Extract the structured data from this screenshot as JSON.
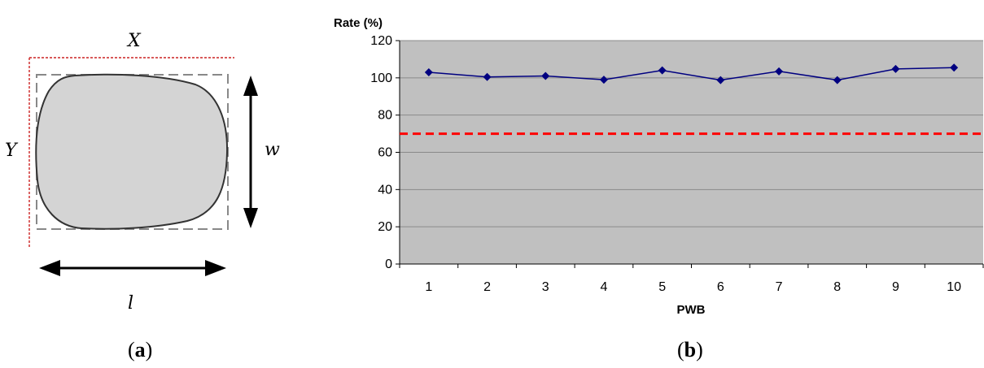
{
  "panel_a": {
    "label_x": "X",
    "label_y": "Y",
    "label_w": "w",
    "label_l": "l",
    "caption_letter": "a"
  },
  "panel_b": {
    "caption_letter": "b"
  },
  "chart_data": {
    "type": "line",
    "ylabel": "Rate (%)",
    "xlabel": "PWB",
    "categories": [
      "1",
      "2",
      "3",
      "4",
      "5",
      "6",
      "7",
      "8",
      "9",
      "10"
    ],
    "series": [
      {
        "values": [
          103,
          100.5,
          101,
          99,
          104,
          98.8,
          103.5,
          98.8,
          104.8,
          105.5
        ],
        "color": "#000080"
      }
    ],
    "threshold": {
      "value": 70,
      "color": "#ff0000",
      "style": "dashed"
    },
    "ylim": [
      0,
      120
    ],
    "yticks": [
      "0",
      "20",
      "40",
      "60",
      "80",
      "100",
      "120"
    ],
    "plot_background": "#c0c0c0",
    "grid": true,
    "legend": "none"
  }
}
